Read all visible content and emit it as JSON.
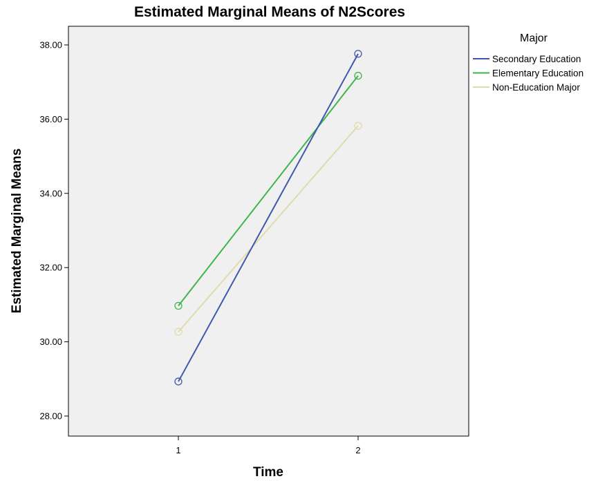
{
  "chart_data": {
    "type": "line",
    "title": "Estimated Marginal Means of N2Scores",
    "xlabel": "Time",
    "ylabel": "Estimated Marginal Means",
    "categories": [
      "1",
      "2"
    ],
    "ylim": [
      27.5,
      39.0
    ],
    "yticks": [
      28,
      30,
      32,
      34,
      36,
      38
    ],
    "ytick_labels": [
      "28.00",
      "30.00",
      "32.00",
      "34.00",
      "36.00",
      "38.00"
    ],
    "grid": false,
    "plot_background": "#f0f0f0",
    "legend_title": "Major",
    "legend_position": "top-right, outside plot",
    "marker": "open-circle",
    "series": [
      {
        "name": "Secondary Education",
        "color": "#3e58ac",
        "values": [
          28.93,
          37.76
        ]
      },
      {
        "name": "Elementary Education",
        "color": "#3eb54a",
        "values": [
          30.97,
          37.17
        ]
      },
      {
        "name": "Non-Education Major",
        "color": "#dedcab",
        "values": [
          30.27,
          35.82
        ]
      }
    ]
  }
}
